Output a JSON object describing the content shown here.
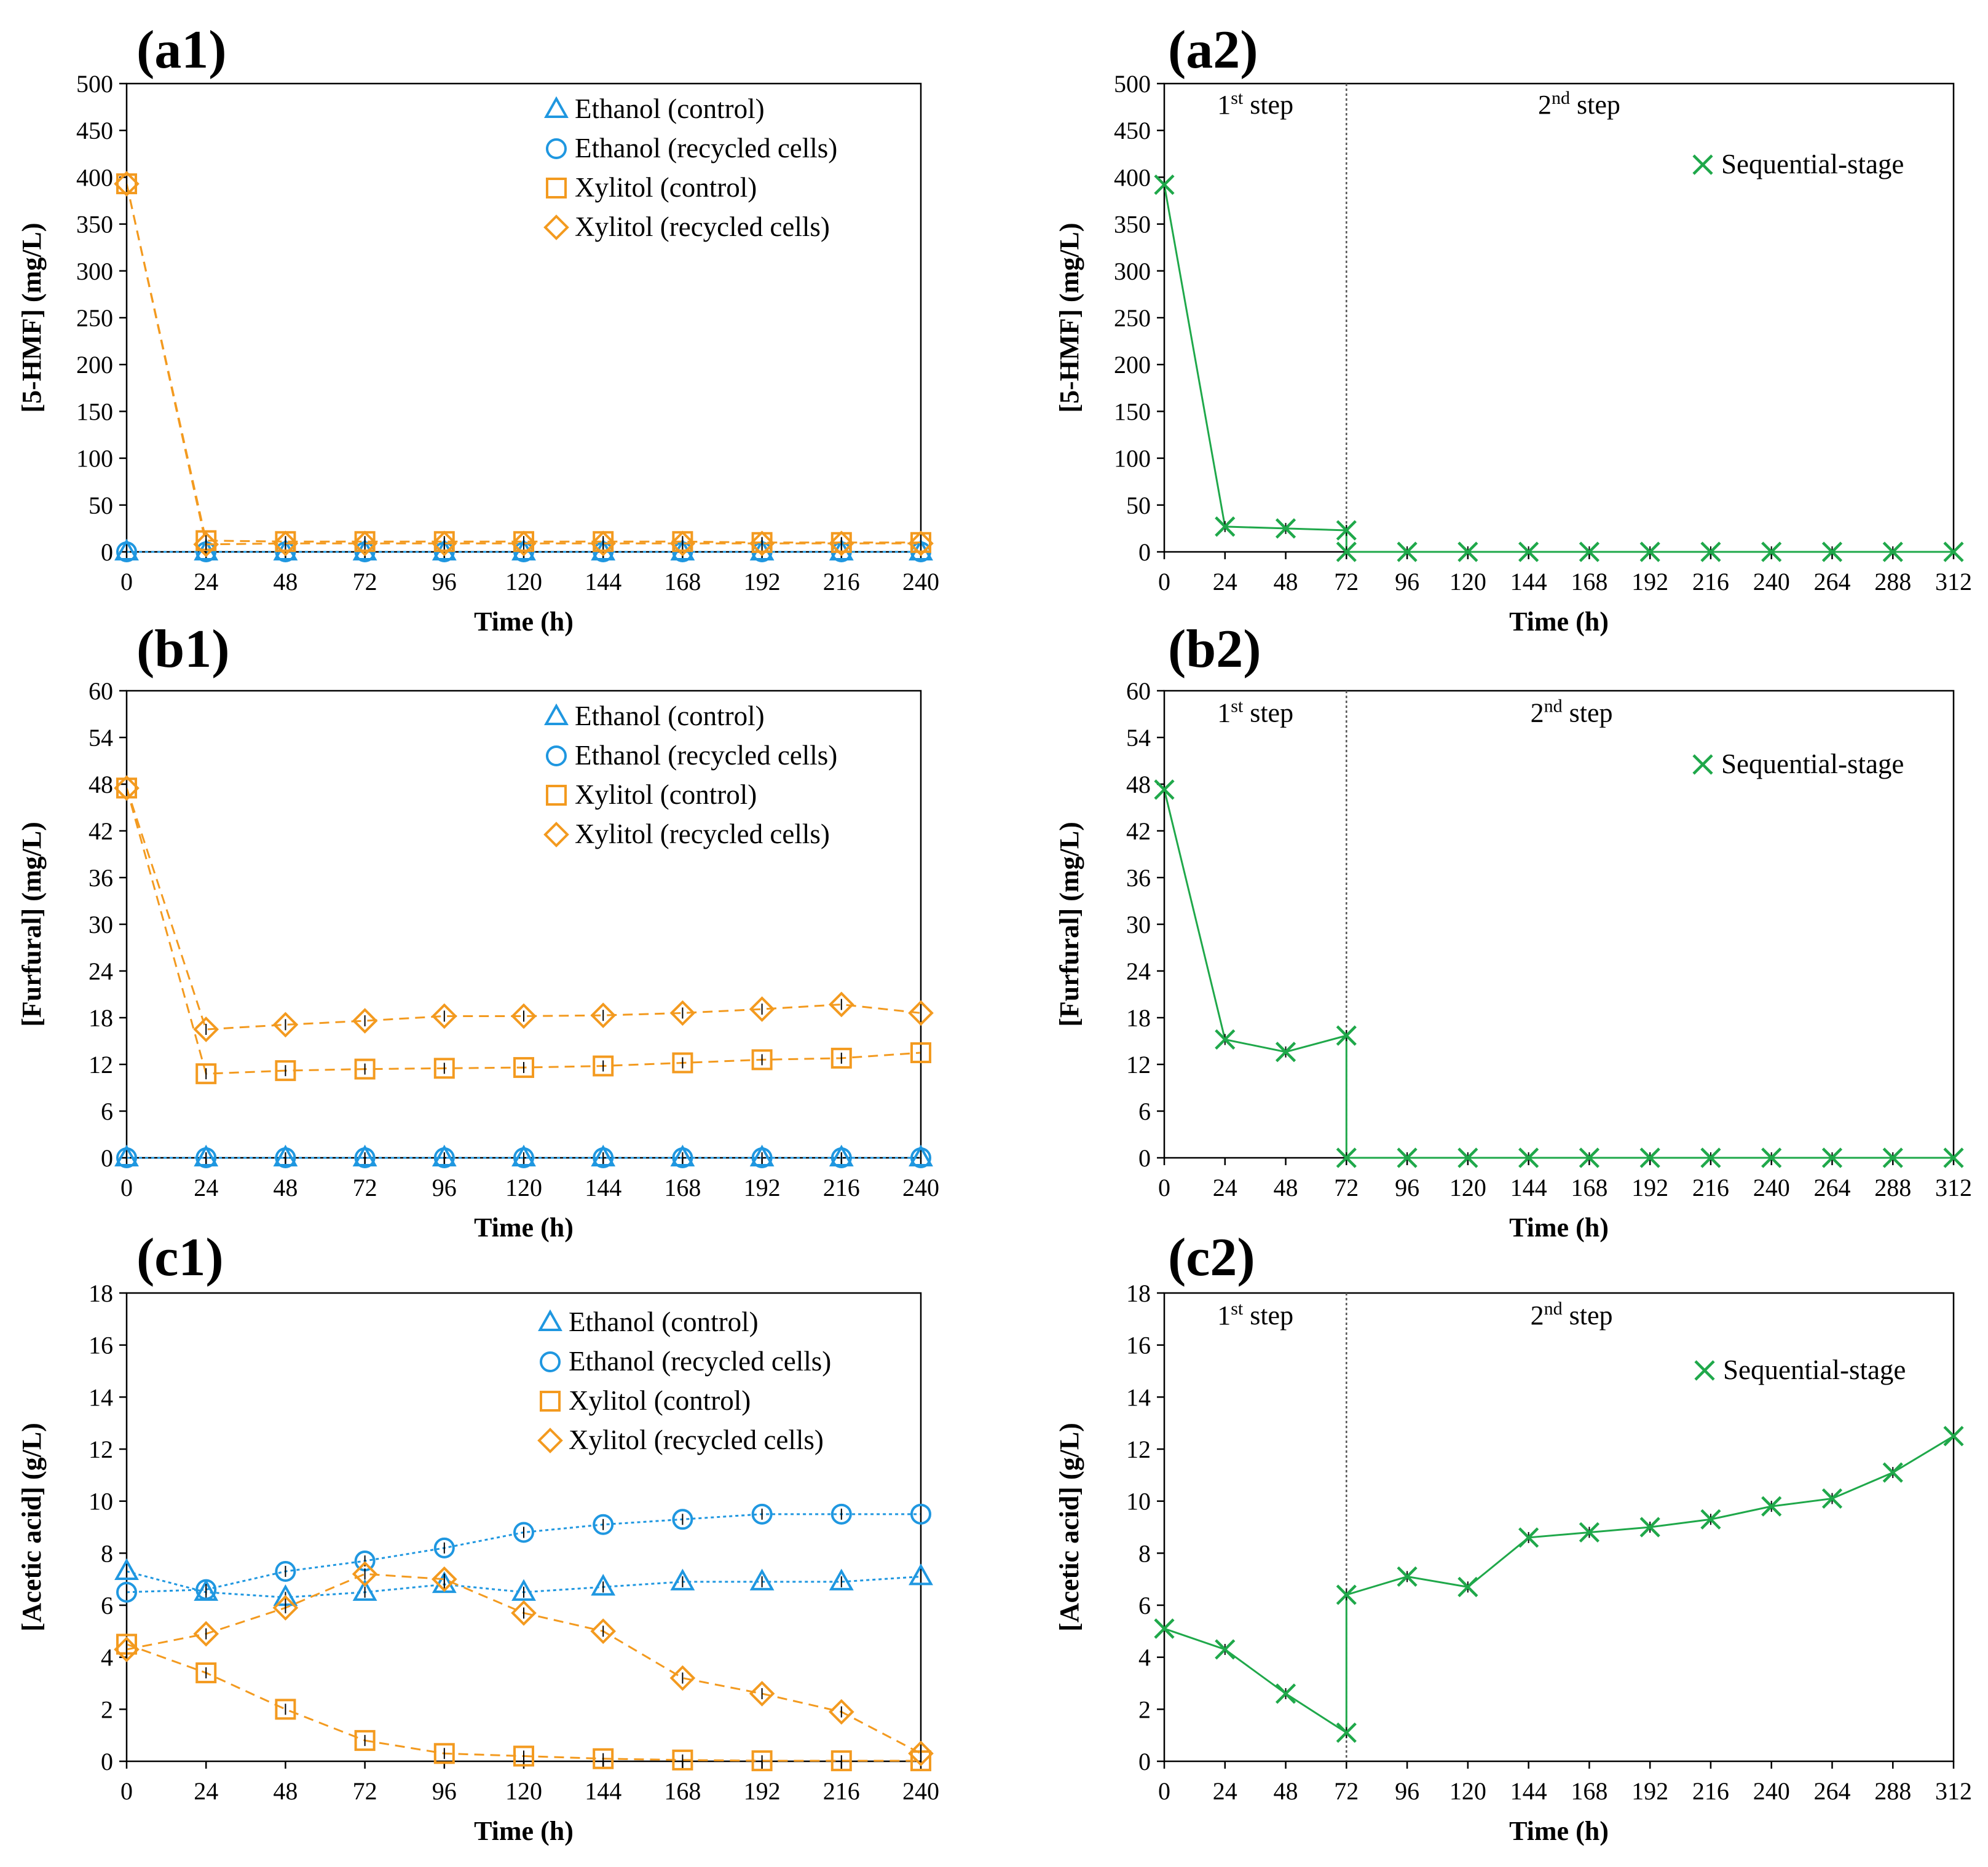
{
  "colors": {
    "blue": "#1f97e0",
    "orange": "#f39a1f",
    "green": "#1fa84a",
    "axis": "#000000",
    "error": "#000000",
    "divider": "#555555"
  },
  "chart_data": [
    {
      "id": "a1",
      "label": "(a1)",
      "type": "line",
      "xlabel": "Time (h)",
      "ylabel": "[5-HMF] (mg/L)",
      "xlim": [
        0,
        240
      ],
      "ylim": [
        0,
        500
      ],
      "xticks": [
        "0",
        "24",
        "48",
        "72",
        "96",
        "120",
        "144",
        "168",
        "192",
        "216",
        "240"
      ],
      "yticks": [
        "0",
        "50",
        "100",
        "150",
        "200",
        "250",
        "300",
        "350",
        "400",
        "450",
        "500"
      ],
      "x": [
        0,
        24,
        48,
        72,
        96,
        120,
        144,
        168,
        192,
        216,
        240
      ],
      "series": [
        {
          "name": "Ethanol (control)",
          "marker": "triangle",
          "color": "blue",
          "line": "dotted",
          "values": [
            0,
            0,
            0,
            0,
            0,
            0,
            0,
            0,
            0,
            0,
            0
          ]
        },
        {
          "name": "Ethanol (recycled cells)",
          "marker": "circle",
          "color": "blue",
          "line": "dotted",
          "values": [
            0,
            0,
            0,
            0,
            0,
            0,
            0,
            0,
            0,
            0,
            0
          ]
        },
        {
          "name": "Xylitol (control)",
          "marker": "square",
          "color": "orange",
          "line": "dashed",
          "values": [
            393,
            12,
            11,
            11,
            11,
            11,
            11,
            11,
            10,
            10,
            10
          ]
        },
        {
          "name": "Xylitol (recycled cells)",
          "marker": "diamond",
          "color": "orange",
          "line": "dashed",
          "values": [
            393,
            8,
            9,
            9,
            9,
            9,
            9,
            9,
            9,
            9,
            9
          ]
        }
      ],
      "steps": []
    },
    {
      "id": "a2",
      "label": "(a2)",
      "type": "line",
      "xlabel": "Time (h)",
      "ylabel": "[5-HMF] (mg/L)",
      "xlim": [
        0,
        312
      ],
      "ylim": [
        0,
        500
      ],
      "xticks": [
        "0",
        "24",
        "48",
        "72",
        "96",
        "120",
        "144",
        "168",
        "192",
        "216",
        "240",
        "264",
        "288",
        "312"
      ],
      "yticks": [
        "0",
        "50",
        "100",
        "150",
        "200",
        "250",
        "300",
        "350",
        "400",
        "450",
        "500"
      ],
      "x": [
        0,
        24,
        48,
        72,
        72,
        96,
        120,
        144,
        168,
        192,
        216,
        240,
        264,
        288,
        312
      ],
      "series": [
        {
          "name": "Sequential-stage",
          "marker": "x",
          "color": "green",
          "line": "solid",
          "values": [
            392,
            27,
            25,
            23,
            0,
            0,
            0,
            0,
            0,
            0,
            0,
            0,
            0,
            0,
            0
          ]
        }
      ],
      "divider_x": 72,
      "steps": [
        {
          "base": "1",
          "sup": "st",
          "rest": " step",
          "at_x": 36,
          "at_y": 468
        },
        {
          "base": "2",
          "sup": "nd",
          "rest": " step",
          "at_x": 164,
          "at_y": 468
        }
      ]
    },
    {
      "id": "b1",
      "label": "(b1)",
      "type": "line",
      "xlabel": "Time (h)",
      "ylabel": "[Furfural] (mg/L)",
      "xlim": [
        0,
        240
      ],
      "ylim": [
        0,
        60
      ],
      "xticks": [
        "0",
        "24",
        "48",
        "72",
        "96",
        "120",
        "144",
        "168",
        "192",
        "216",
        "240"
      ],
      "yticks": [
        "0",
        "6",
        "12",
        "18",
        "24",
        "30",
        "36",
        "42",
        "48",
        "54",
        "60"
      ],
      "x": [
        0,
        24,
        48,
        72,
        96,
        120,
        144,
        168,
        192,
        216,
        240
      ],
      "series": [
        {
          "name": "Ethanol (control)",
          "marker": "triangle",
          "color": "blue",
          "line": "dotted",
          "values": [
            0,
            0,
            0,
            0,
            0,
            0,
            0,
            0,
            0,
            0,
            0
          ]
        },
        {
          "name": "Ethanol (recycled cells)",
          "marker": "circle",
          "color": "blue",
          "line": "dotted",
          "values": [
            0,
            0,
            0,
            0,
            0,
            0,
            0,
            0,
            0,
            0,
            0
          ]
        },
        {
          "name": "Xylitol (control)",
          "marker": "square",
          "color": "orange",
          "line": "dashed",
          "values": [
            47.5,
            10.8,
            11.2,
            11.4,
            11.5,
            11.6,
            11.8,
            12.2,
            12.6,
            12.8,
            13.5
          ]
        },
        {
          "name": "Xylitol (recycled cells)",
          "marker": "diamond",
          "color": "orange",
          "line": "dashed",
          "values": [
            47.5,
            16.5,
            17.1,
            17.6,
            18.2,
            18.2,
            18.3,
            18.6,
            19.1,
            19.7,
            18.6
          ]
        }
      ],
      "steps": []
    },
    {
      "id": "b2",
      "label": "(b2)",
      "type": "line",
      "xlabel": "Time (h)",
      "ylabel": "[Furfural] (mg/L)",
      "xlim": [
        0,
        312
      ],
      "ylim": [
        0,
        60
      ],
      "xticks": [
        "0",
        "24",
        "48",
        "72",
        "96",
        "120",
        "144",
        "168",
        "192",
        "216",
        "240",
        "264",
        "288",
        "312"
      ],
      "yticks": [
        "0",
        "6",
        "12",
        "18",
        "24",
        "30",
        "36",
        "42",
        "48",
        "54",
        "60"
      ],
      "x": [
        0,
        24,
        48,
        72,
        72,
        96,
        120,
        144,
        168,
        192,
        216,
        240,
        264,
        288,
        312
      ],
      "series": [
        {
          "name": "Sequential-stage",
          "marker": "x",
          "color": "green",
          "line": "solid",
          "values": [
            47.3,
            15.2,
            13.6,
            15.7,
            0,
            0,
            0,
            0,
            0,
            0,
            0,
            0,
            0,
            0,
            0
          ]
        }
      ],
      "divider_x": 72,
      "steps": [
        {
          "base": "1",
          "sup": "st",
          "rest": " step",
          "at_x": 36,
          "at_y": 56
        },
        {
          "base": "2",
          "sup": "nd",
          "rest": " step",
          "at_x": 161,
          "at_y": 56
        }
      ]
    },
    {
      "id": "c1",
      "label": "(c1)",
      "type": "line",
      "xlabel": "Time (h)",
      "ylabel": "[Acetic acid] (g/L)",
      "xlim": [
        0,
        240
      ],
      "ylim": [
        0,
        18
      ],
      "xticks": [
        "0",
        "24",
        "48",
        "72",
        "96",
        "120",
        "144",
        "168",
        "192",
        "216",
        "240"
      ],
      "yticks": [
        "0",
        "2",
        "4",
        "6",
        "8",
        "10",
        "12",
        "14",
        "16",
        "18"
      ],
      "x": [
        0,
        24,
        48,
        72,
        96,
        120,
        144,
        168,
        192,
        216,
        240
      ],
      "series": [
        {
          "name": "Ethanol (control)",
          "marker": "triangle",
          "color": "blue",
          "line": "dotted",
          "values": [
            7.3,
            6.5,
            6.3,
            6.5,
            6.8,
            6.5,
            6.7,
            6.9,
            6.9,
            6.9,
            7.1
          ]
        },
        {
          "name": "Ethanol (recycled cells)",
          "marker": "circle",
          "color": "blue",
          "line": "dotted",
          "values": [
            6.5,
            6.6,
            7.3,
            7.7,
            8.2,
            8.8,
            9.1,
            9.3,
            9.5,
            9.5,
            9.5
          ]
        },
        {
          "name": "Xylitol (control)",
          "marker": "square",
          "color": "orange",
          "line": "dashed",
          "values": [
            4.5,
            3.4,
            2.0,
            0.8,
            0.3,
            0.2,
            0.1,
            0.05,
            0.02,
            0.02,
            0.02
          ]
        },
        {
          "name": "Xylitol (recycled cells)",
          "marker": "diamond",
          "color": "orange",
          "line": "dashed",
          "values": [
            4.3,
            4.9,
            5.9,
            7.2,
            7.0,
            5.7,
            5.0,
            3.2,
            2.6,
            1.9,
            0.3
          ]
        }
      ],
      "steps": []
    },
    {
      "id": "c2",
      "label": "(c2)",
      "type": "line",
      "xlabel": "Time (h)",
      "ylabel": "[Acetic acid] (g/L)",
      "xlim": [
        0,
        312
      ],
      "ylim": [
        0,
        18
      ],
      "xticks": [
        "0",
        "24",
        "48",
        "72",
        "96",
        "120",
        "144",
        "168",
        "192",
        "216",
        "240",
        "264",
        "288",
        "312"
      ],
      "yticks": [
        "0",
        "2",
        "4",
        "6",
        "8",
        "10",
        "12",
        "14",
        "16",
        "18"
      ],
      "x": [
        0,
        24,
        48,
        72,
        72,
        96,
        120,
        144,
        168,
        192,
        216,
        240,
        264,
        288,
        312
      ],
      "series": [
        {
          "name": "Sequential-stage",
          "marker": "x",
          "color": "green",
          "line": "solid",
          "values": [
            5.1,
            4.3,
            2.6,
            1.1,
            6.4,
            7.1,
            6.7,
            8.6,
            8.8,
            9.0,
            9.3,
            9.8,
            10.1,
            11.1,
            12.5
          ]
        }
      ],
      "divider_x": 72,
      "steps": [
        {
          "base": "1",
          "sup": "st",
          "rest": " step",
          "at_x": 36,
          "at_y": 16.8
        },
        {
          "base": "2",
          "sup": "nd",
          "rest": " step",
          "at_x": 161,
          "at_y": 16.8
        }
      ]
    }
  ]
}
